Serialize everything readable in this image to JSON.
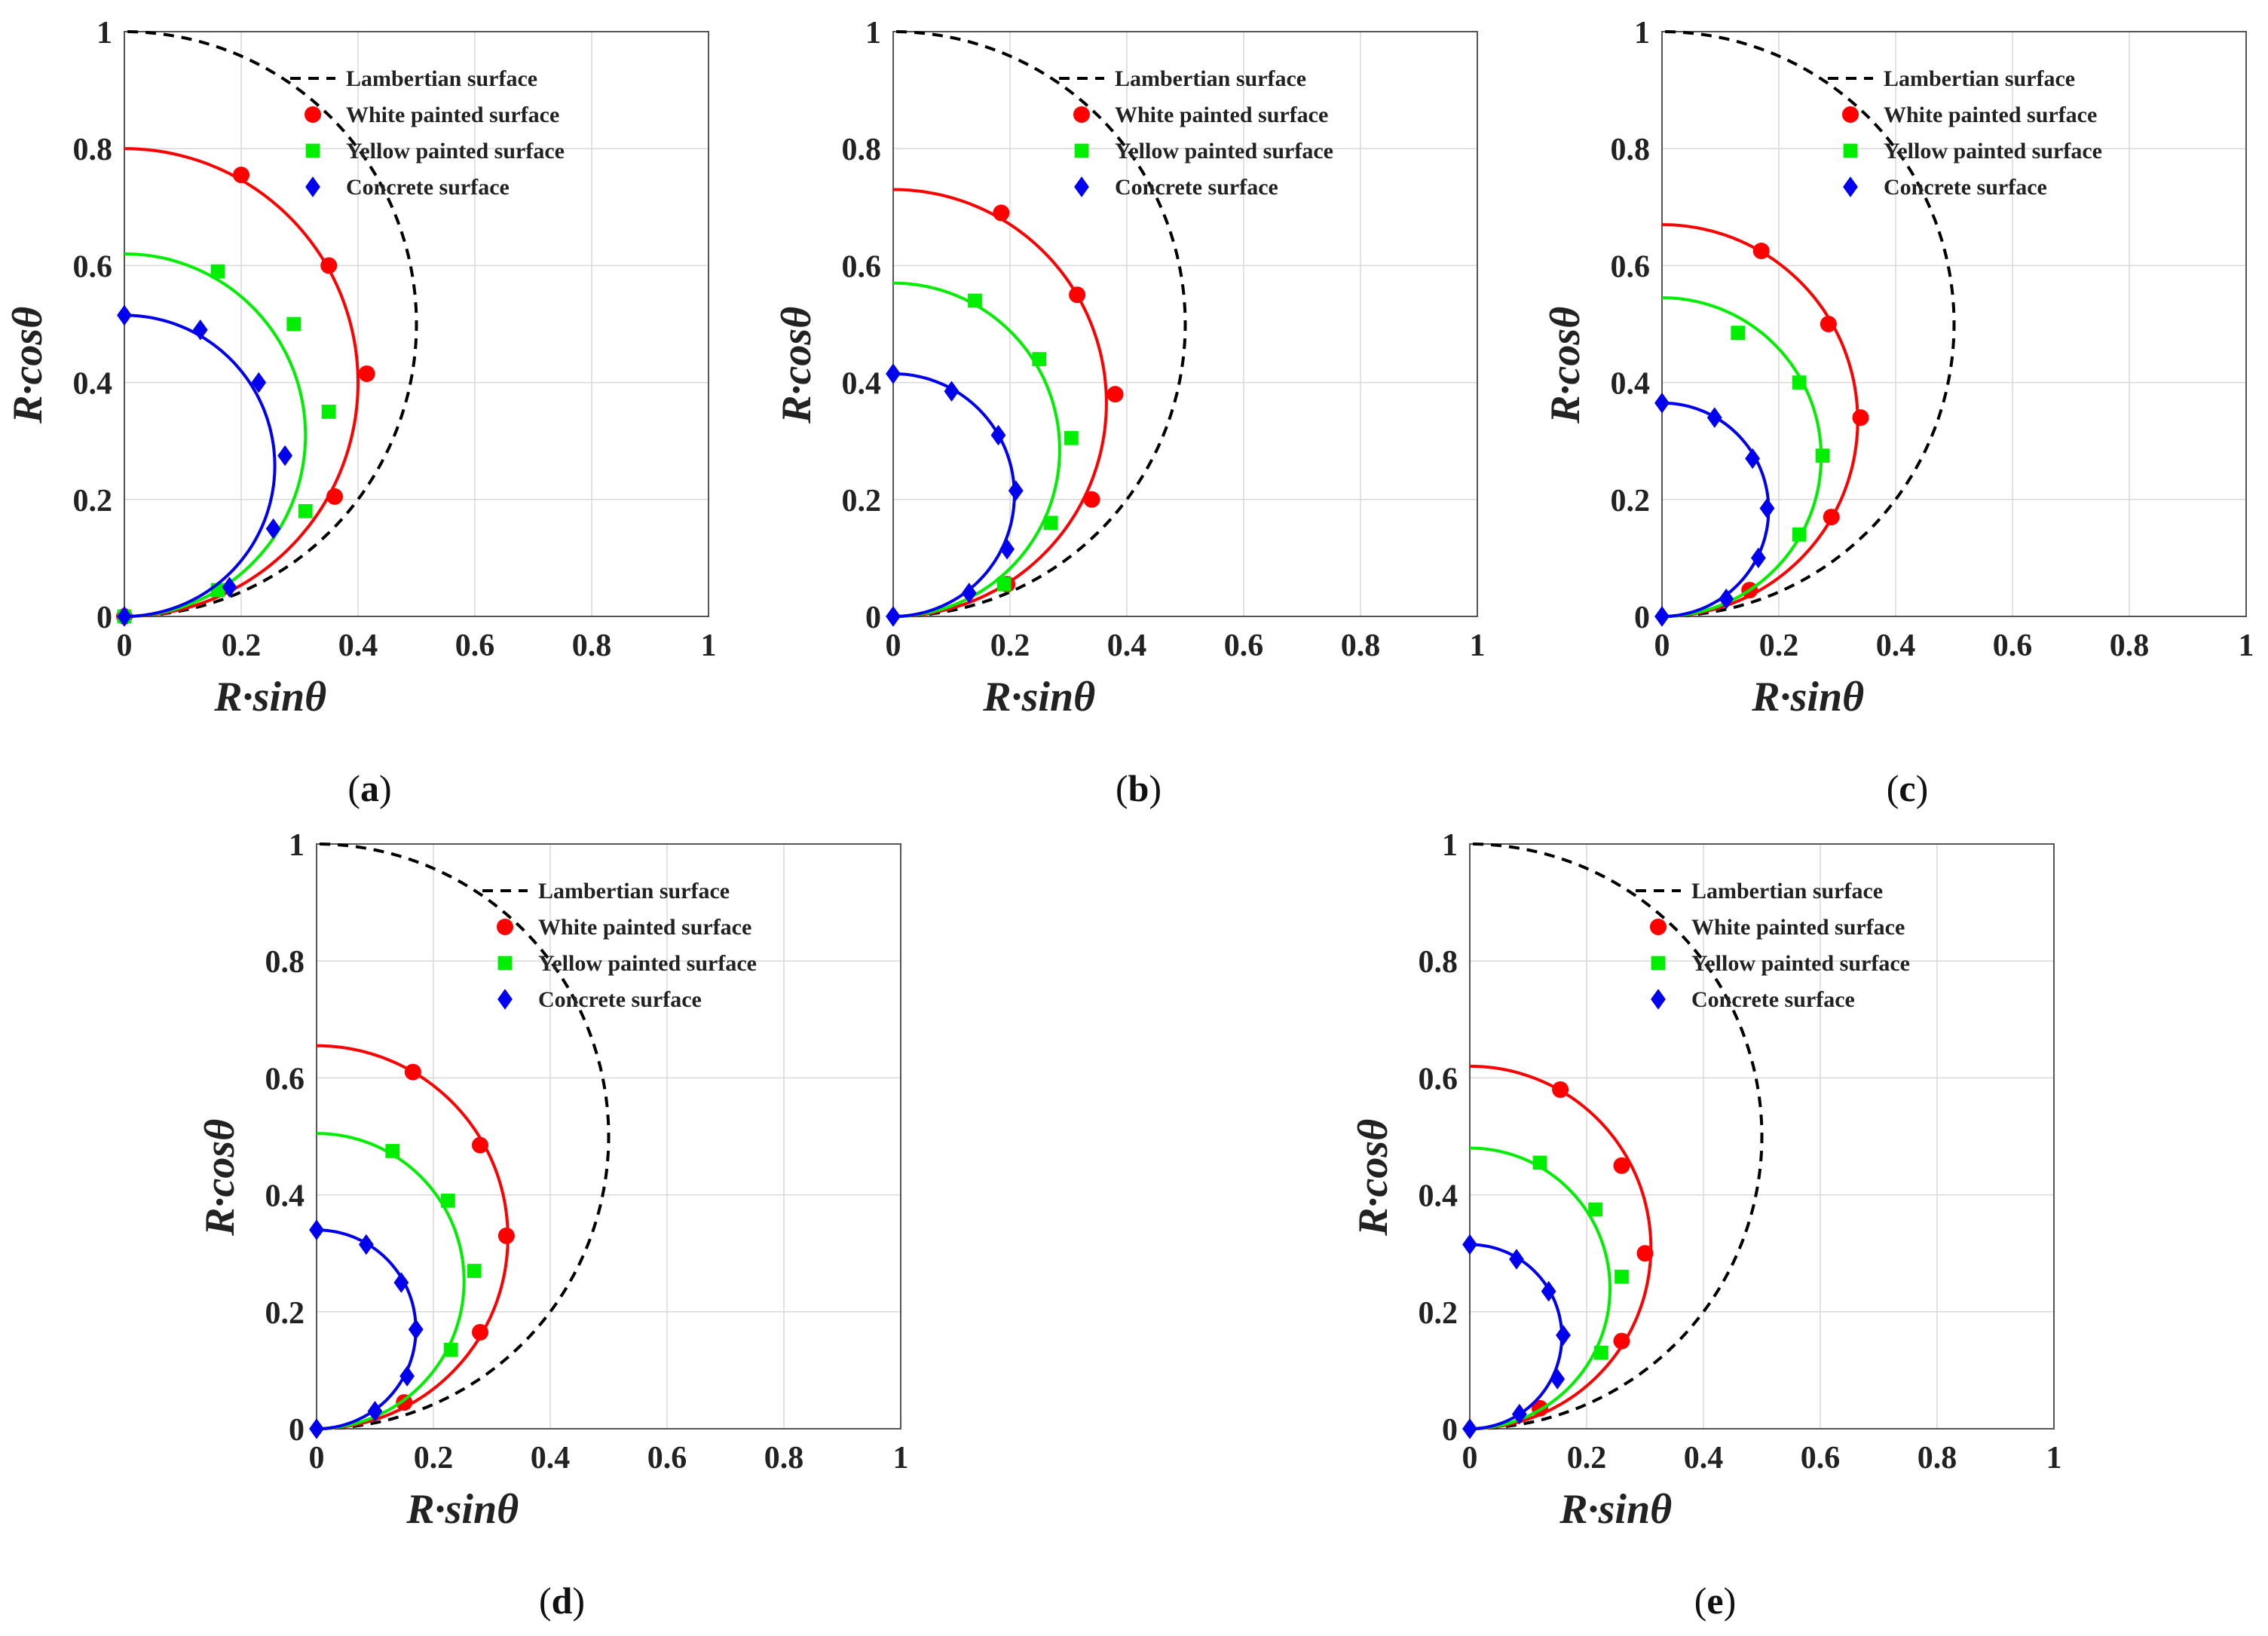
{
  "colors": {
    "lambertian": "#000000",
    "white_surface": "#ff0000",
    "yellow_surface": "#00ee00",
    "concrete_surface": "#0000ee"
  },
  "legend": [
    {
      "key": "lambertian",
      "label": "Lambertian surface",
      "marker": "dash"
    },
    {
      "key": "white_surface",
      "label": "White painted surface",
      "marker": "circle"
    },
    {
      "key": "yellow_surface",
      "label": "Yellow painted surface",
      "marker": "square"
    },
    {
      "key": "concrete_surface",
      "label": "Concrete surface",
      "marker": "diamond"
    }
  ],
  "chart_data": [
    {
      "panel": "a",
      "sub_label": "a",
      "type": "scatter",
      "xlabel": "R·sinθ",
      "ylabel": "R·cosθ",
      "xlim": [
        0,
        1
      ],
      "ylim": [
        0,
        1
      ],
      "xticks": [
        "0",
        "0.2",
        "0.4",
        "0.6",
        "0.8",
        "1"
      ],
      "yticks": [
        "0",
        "0.2",
        "0.4",
        "0.6",
        "0.8",
        "1"
      ],
      "grid": true,
      "legend_position": "top-right",
      "series": [
        {
          "name": "Lambertian surface",
          "key": "lambertian",
          "style": "dashed-curve",
          "curve_radius": 1.0,
          "points": []
        },
        {
          "name": "White painted surface",
          "key": "white_surface",
          "marker": "circle",
          "curve_radius": 0.8,
          "points": [
            [
              0.0,
              0.0
            ],
            [
              0.36,
              0.205
            ],
            [
              0.415,
              0.415
            ],
            [
              0.35,
              0.6
            ],
            [
              0.2,
              0.755
            ]
          ]
        },
        {
          "name": "Yellow painted surface",
          "key": "yellow_surface",
          "marker": "square",
          "curve_radius": 0.62,
          "points": [
            [
              0.0,
              0.0
            ],
            [
              0.16,
              0.045
            ],
            [
              0.31,
              0.18
            ],
            [
              0.35,
              0.35
            ],
            [
              0.29,
              0.5
            ],
            [
              0.16,
              0.59
            ]
          ]
        },
        {
          "name": "Concrete surface",
          "key": "concrete_surface",
          "marker": "diamond",
          "curve_radius": 0.515,
          "points": [
            [
              0.0,
              0.0
            ],
            [
              0.0,
              0.515
            ],
            [
              0.18,
              0.05
            ],
            [
              0.255,
              0.15
            ],
            [
              0.275,
              0.275
            ],
            [
              0.23,
              0.4
            ],
            [
              0.13,
              0.49
            ]
          ]
        }
      ]
    },
    {
      "panel": "b",
      "sub_label": "b",
      "type": "scatter",
      "xlabel": "R·sinθ",
      "ylabel": "R·cosθ",
      "xlim": [
        0,
        1
      ],
      "ylim": [
        0,
        1
      ],
      "xticks": [
        "0",
        "0.2",
        "0.4",
        "0.6",
        "0.8",
        "1"
      ],
      "yticks": [
        "0",
        "0.2",
        "0.4",
        "0.6",
        "0.8",
        "1"
      ],
      "grid": true,
      "legend_position": "top-right",
      "series": [
        {
          "name": "Lambertian surface",
          "key": "lambertian",
          "style": "dashed-curve",
          "curve_radius": 1.0,
          "points": []
        },
        {
          "name": "White painted surface",
          "key": "white_surface",
          "marker": "circle",
          "curve_radius": 0.73,
          "points": [
            [
              0.195,
              0.055
            ],
            [
              0.34,
              0.2
            ],
            [
              0.38,
              0.38
            ],
            [
              0.315,
              0.55
            ],
            [
              0.185,
              0.69
            ]
          ]
        },
        {
          "name": "Yellow painted surface",
          "key": "yellow_surface",
          "marker": "square",
          "curve_radius": 0.57,
          "points": [
            [
              0.19,
              0.055
            ],
            [
              0.27,
              0.16
            ],
            [
              0.305,
              0.305
            ],
            [
              0.25,
              0.44
            ],
            [
              0.14,
              0.54
            ]
          ]
        },
        {
          "name": "Concrete surface",
          "key": "concrete_surface",
          "marker": "diamond",
          "curve_radius": 0.415,
          "points": [
            [
              0.0,
              0.0
            ],
            [
              0.0,
              0.415
            ],
            [
              0.13,
              0.04
            ],
            [
              0.195,
              0.115
            ],
            [
              0.21,
              0.215
            ],
            [
              0.18,
              0.31
            ],
            [
              0.1,
              0.385
            ]
          ]
        }
      ]
    },
    {
      "panel": "c",
      "sub_label": "c",
      "type": "scatter",
      "xlabel": "R·sinθ",
      "ylabel": "R·cosθ",
      "xlim": [
        0,
        1
      ],
      "ylim": [
        0,
        1
      ],
      "xticks": [
        "0",
        "0.2",
        "0.4",
        "0.6",
        "0.8",
        "1"
      ],
      "yticks": [
        "0",
        "0.2",
        "0.4",
        "0.6",
        "0.8",
        "1"
      ],
      "grid": true,
      "legend_position": "top-right",
      "series": [
        {
          "name": "Lambertian surface",
          "key": "lambertian",
          "style": "dashed-curve",
          "curve_radius": 1.0,
          "points": []
        },
        {
          "name": "White painted surface",
          "key": "white_surface",
          "marker": "circle",
          "curve_radius": 0.67,
          "points": [
            [
              0.15,
              0.045
            ],
            [
              0.29,
              0.17
            ],
            [
              0.34,
              0.34
            ],
            [
              0.285,
              0.5
            ],
            [
              0.17,
              0.625
            ]
          ]
        },
        {
          "name": "Yellow painted surface",
          "key": "yellow_surface",
          "marker": "square",
          "curve_radius": 0.545,
          "points": [
            [
              0.235,
              0.14
            ],
            [
              0.275,
              0.275
            ],
            [
              0.235,
              0.4
            ],
            [
              0.13,
              0.485
            ]
          ]
        },
        {
          "name": "Concrete surface",
          "key": "concrete_surface",
          "marker": "diamond",
          "curve_radius": 0.365,
          "points": [
            [
              0.0,
              0.0
            ],
            [
              0.0,
              0.365
            ],
            [
              0.11,
              0.03
            ],
            [
              0.165,
              0.1
            ],
            [
              0.18,
              0.185
            ],
            [
              0.155,
              0.27
            ],
            [
              0.09,
              0.34
            ]
          ]
        }
      ]
    },
    {
      "panel": "d",
      "sub_label": "d",
      "type": "scatter",
      "xlabel": "R·sinθ",
      "ylabel": "R·cosθ",
      "xlim": [
        0,
        1
      ],
      "ylim": [
        0,
        1
      ],
      "xticks": [
        "0",
        "0.2",
        "0.4",
        "0.6",
        "0.8",
        "1"
      ],
      "yticks": [
        "0",
        "0.2",
        "0.4",
        "0.6",
        "0.8",
        "1"
      ],
      "grid": true,
      "legend_position": "top-right",
      "series": [
        {
          "name": "Lambertian surface",
          "key": "lambertian",
          "style": "dashed-curve",
          "curve_radius": 1.0,
          "points": []
        },
        {
          "name": "White painted surface",
          "key": "white_surface",
          "marker": "circle",
          "curve_radius": 0.655,
          "points": [
            [
              0.15,
              0.045
            ],
            [
              0.28,
              0.165
            ],
            [
              0.325,
              0.33
            ],
            [
              0.28,
              0.485
            ],
            [
              0.165,
              0.61
            ]
          ]
        },
        {
          "name": "Yellow painted surface",
          "key": "yellow_surface",
          "marker": "square",
          "curve_radius": 0.505,
          "points": [
            [
              0.23,
              0.135
            ],
            [
              0.27,
              0.27
            ],
            [
              0.225,
              0.39
            ],
            [
              0.13,
              0.475
            ]
          ]
        },
        {
          "name": "Concrete surface",
          "key": "concrete_surface",
          "marker": "diamond",
          "curve_radius": 0.34,
          "points": [
            [
              0.0,
              0.0
            ],
            [
              0.0,
              0.34
            ],
            [
              0.1,
              0.03
            ],
            [
              0.155,
              0.09
            ],
            [
              0.17,
              0.17
            ],
            [
              0.145,
              0.25
            ],
            [
              0.085,
              0.315
            ]
          ]
        }
      ]
    },
    {
      "panel": "e",
      "sub_label": "e",
      "type": "scatter",
      "xlabel": "R·sinθ",
      "ylabel": "R·cosθ",
      "xlim": [
        0,
        1
      ],
      "ylim": [
        0,
        1
      ],
      "xticks": [
        "0",
        "0.2",
        "0.4",
        "0.6",
        "0.8",
        "1"
      ],
      "yticks": [
        "0",
        "0.2",
        "0.4",
        "0.6",
        "0.8",
        "1"
      ],
      "grid": true,
      "legend_position": "top-right",
      "series": [
        {
          "name": "Lambertian surface",
          "key": "lambertian",
          "style": "dashed-curve",
          "curve_radius": 1.0,
          "points": []
        },
        {
          "name": "White painted surface",
          "key": "white_surface",
          "marker": "circle",
          "curve_radius": 0.62,
          "points": [
            [
              0.12,
              0.035
            ],
            [
              0.26,
              0.15
            ],
            [
              0.3,
              0.3
            ],
            [
              0.26,
              0.45
            ],
            [
              0.155,
              0.58
            ]
          ]
        },
        {
          "name": "Yellow painted surface",
          "key": "yellow_surface",
          "marker": "square",
          "curve_radius": 0.48,
          "points": [
            [
              0.225,
              0.13
            ],
            [
              0.26,
              0.26
            ],
            [
              0.215,
              0.375
            ],
            [
              0.12,
              0.455
            ]
          ]
        },
        {
          "name": "Concrete surface",
          "key": "concrete_surface",
          "marker": "diamond",
          "curve_radius": 0.315,
          "points": [
            [
              0.0,
              0.0
            ],
            [
              0.0,
              0.315
            ],
            [
              0.085,
              0.025
            ],
            [
              0.15,
              0.085
            ],
            [
              0.16,
              0.16
            ],
            [
              0.135,
              0.235
            ],
            [
              0.08,
              0.29
            ]
          ]
        }
      ]
    }
  ]
}
